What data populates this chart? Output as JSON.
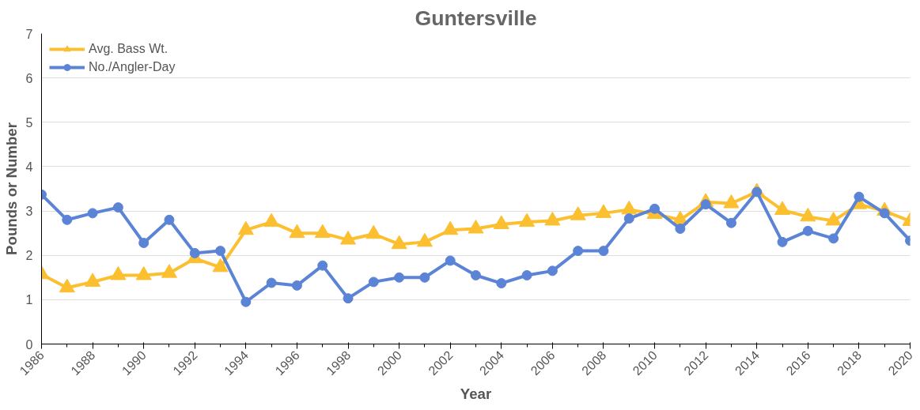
{
  "chart_data": {
    "type": "line",
    "title": "Guntersville",
    "xlabel": "Year",
    "ylabel": "Pounds or Number",
    "x": [
      1986,
      1987,
      1988,
      1989,
      1990,
      1991,
      1992,
      1993,
      1994,
      1995,
      1996,
      1997,
      1998,
      1999,
      2000,
      2001,
      2002,
      2003,
      2004,
      2005,
      2006,
      2007,
      2008,
      2009,
      2010,
      2011,
      2012,
      2013,
      2014,
      2015,
      2016,
      2017,
      2018,
      2019,
      2020
    ],
    "series": [
      {
        "name": "Avg. Bass Wt.",
        "color": "#fbbf2f",
        "marker": "triangle",
        "values": [
          1.57,
          1.27,
          1.4,
          1.55,
          1.55,
          1.6,
          1.93,
          1.73,
          2.57,
          2.75,
          2.5,
          2.5,
          2.35,
          2.48,
          2.25,
          2.3,
          2.57,
          2.6,
          2.7,
          2.75,
          2.78,
          2.9,
          2.95,
          3.03,
          2.93,
          2.8,
          3.2,
          3.17,
          3.43,
          3.02,
          2.87,
          2.78,
          3.15,
          3.0,
          2.77
        ]
      },
      {
        "name": "No./Angler-Day",
        "color": "#5b84d6",
        "marker": "circle",
        "values": [
          3.37,
          2.8,
          2.95,
          3.08,
          2.28,
          2.8,
          2.05,
          2.1,
          0.95,
          1.38,
          1.32,
          1.77,
          1.03,
          1.4,
          1.5,
          1.5,
          1.88,
          1.55,
          1.37,
          1.55,
          1.65,
          2.1,
          2.1,
          2.83,
          3.05,
          2.6,
          3.15,
          2.73,
          3.43,
          2.3,
          2.55,
          2.38,
          3.32,
          2.95,
          2.33
        ]
      }
    ],
    "xlim": [
      1986,
      2020
    ],
    "xticks": [
      1986,
      1988,
      1990,
      1992,
      1994,
      1996,
      1998,
      2000,
      2002,
      2004,
      2006,
      2008,
      2010,
      2012,
      2014,
      2016,
      2018,
      2020
    ],
    "ylim": [
      0,
      7
    ],
    "yticks": [
      0,
      1,
      2,
      3,
      4,
      5,
      6,
      7
    ],
    "grid": "y",
    "legend": "top left",
    "line_style": "solid"
  }
}
